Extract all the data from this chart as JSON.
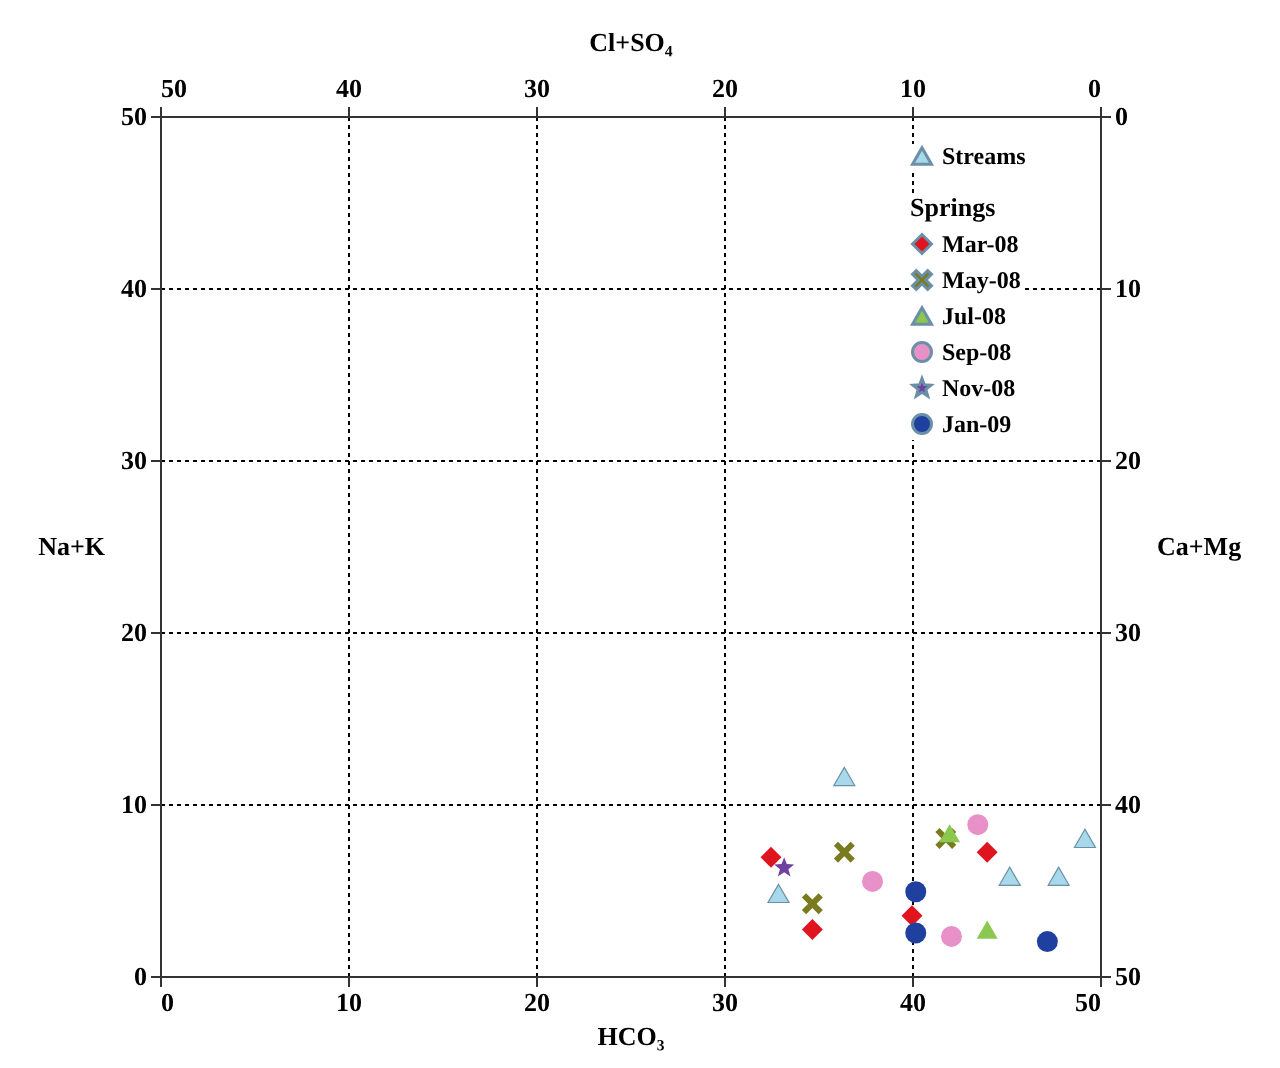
{
  "chart_data": {
    "type": "scatter",
    "xlabel": "HCO₃",
    "ylabel": "Na+K",
    "x2label": "Cl+SO₄",
    "y2label": "Ca+Mg",
    "xlim": [
      0,
      50
    ],
    "xticks": [
      0,
      10,
      20,
      30,
      40,
      50
    ],
    "ylim": [
      0,
      50
    ],
    "yticks": [
      0,
      10,
      20,
      30,
      40,
      50
    ],
    "x2lim": [
      50,
      0
    ],
    "x2ticks": [
      0,
      10,
      20,
      30,
      40,
      50
    ],
    "y2lim": [
      50,
      0
    ],
    "y2ticks": [
      0,
      10,
      20,
      30,
      40,
      50
    ],
    "grid": true,
    "legend": "top right",
    "legend_title": "Springs",
    "series": [
      {
        "name": "Streams",
        "color": "#a8d8ec",
        "marker": "triangle",
        "x": [
          36.4,
          32.9,
          45.2,
          47.8,
          49.2
        ],
        "values": [
          11.6,
          4.8,
          5.8,
          5.8,
          8.0
        ]
      },
      {
        "name": "Mar-08",
        "color": "#e0141e",
        "marker": "diamond",
        "x": [
          32.5,
          34.7,
          44.0,
          40.0
        ],
        "values": [
          6.9,
          2.7,
          7.2,
          3.5
        ]
      },
      {
        "name": "May-08",
        "color": "#7a7a1e",
        "marker": "cross",
        "x": [
          36.4,
          34.7,
          41.8
        ],
        "values": [
          7.2,
          4.2,
          8.0
        ]
      },
      {
        "name": "Jul-08",
        "color": "#8cc850",
        "marker": "triangle",
        "x": [
          42.0,
          44.0
        ],
        "values": [
          8.3,
          2.7
        ]
      },
      {
        "name": "Sep-08",
        "color": "#e890c8",
        "marker": "circle",
        "x": [
          37.9,
          43.5,
          42.1
        ],
        "values": [
          5.5,
          8.8,
          2.3
        ]
      },
      {
        "name": "Nov-08",
        "color": "#7040a0",
        "marker": "star",
        "x": [
          33.2
        ],
        "values": [
          6.3
        ]
      },
      {
        "name": "Jan-09",
        "color": "#2040a0",
        "marker": "circle",
        "x": [
          40.2,
          40.2,
          47.2
        ],
        "values": [
          4.9,
          2.5,
          2.0
        ]
      }
    ]
  }
}
